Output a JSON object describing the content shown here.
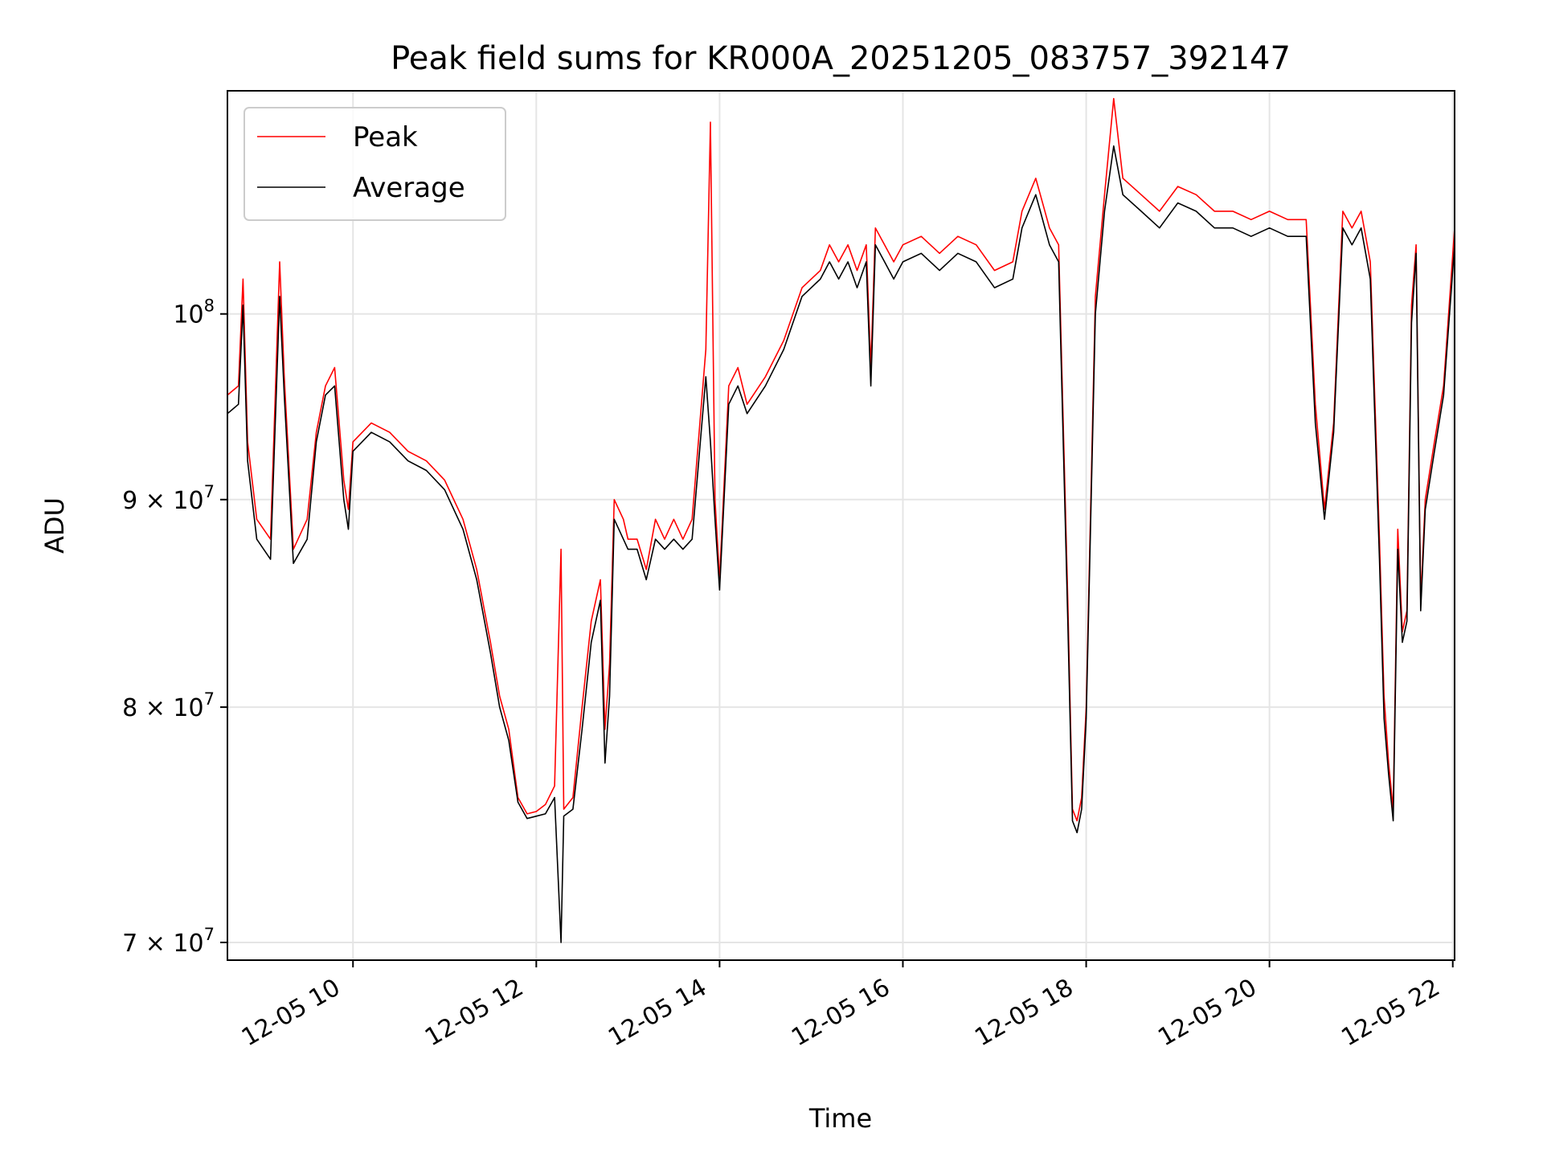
{
  "chart_data": {
    "type": "line",
    "title": "Peak field sums for KR000A_20251205_083757_392147",
    "xlabel": "Time",
    "ylabel": "ADU",
    "y_scale": "log",
    "xlim": [
      8.63,
      22.02
    ],
    "ylim": [
      69300000,
      113500000
    ],
    "grid": true,
    "legend_position": "top-left",
    "x_ticks": [
      {
        "value": 10,
        "label": "12-05 10"
      },
      {
        "value": 12,
        "label": "12-05 12"
      },
      {
        "value": 14,
        "label": "12-05 14"
      },
      {
        "value": 16,
        "label": "12-05 16"
      },
      {
        "value": 18,
        "label": "12-05 18"
      },
      {
        "value": 20,
        "label": "12-05 20"
      },
      {
        "value": 22,
        "label": "12-05 22"
      }
    ],
    "y_ticks": [
      {
        "value": 70000000,
        "base": "7",
        "exp": "7",
        "times": true
      },
      {
        "value": 80000000,
        "base": "8",
        "exp": "7",
        "times": true
      },
      {
        "value": 90000000,
        "base": "9",
        "exp": "7",
        "times": true
      },
      {
        "value": 100000000,
        "base": "10",
        "exp": "8",
        "times": false
      }
    ],
    "series": [
      {
        "name": "Peak",
        "color": "#ff0000",
        "x": [
          8.63,
          8.75,
          8.8,
          8.85,
          8.95,
          9.1,
          9.2,
          9.25,
          9.35,
          9.5,
          9.6,
          9.7,
          9.8,
          9.9,
          9.95,
          10.0,
          10.2,
          10.4,
          10.6,
          10.8,
          11.0,
          11.2,
          11.35,
          11.5,
          11.6,
          11.7,
          11.8,
          11.9,
          12.0,
          12.1,
          12.2,
          12.27,
          12.3,
          12.4,
          12.5,
          12.6,
          12.7,
          12.75,
          12.8,
          12.85,
          12.95,
          13.0,
          13.1,
          13.2,
          13.3,
          13.4,
          13.5,
          13.6,
          13.7,
          13.85,
          13.9,
          13.95,
          14.0,
          14.1,
          14.2,
          14.3,
          14.5,
          14.7,
          14.9,
          15.1,
          15.2,
          15.3,
          15.4,
          15.5,
          15.6,
          15.65,
          15.7,
          15.8,
          15.9,
          16.0,
          16.2,
          16.4,
          16.6,
          16.8,
          17.0,
          17.2,
          17.3,
          17.45,
          17.5,
          17.6,
          17.7,
          17.8,
          17.85,
          17.9,
          17.95,
          18.0,
          18.1,
          18.2,
          18.3,
          18.4,
          18.6,
          18.8,
          19.0,
          19.2,
          19.4,
          19.6,
          19.8,
          20.0,
          20.2,
          20.4,
          20.5,
          20.6,
          20.7,
          20.8,
          20.9,
          21.0,
          21.1,
          21.2,
          21.25,
          21.3,
          21.35,
          21.4,
          21.45,
          21.5,
          21.55,
          21.6,
          21.65,
          21.7,
          21.8,
          21.9,
          22.02
        ],
        "values": [
          95500000,
          96000000,
          102000000,
          93000000,
          89000000,
          88000000,
          103000000,
          96500000,
          87500000,
          89000000,
          93500000,
          96000000,
          97000000,
          91000000,
          89500000,
          93000000,
          94000000,
          93500000,
          92500000,
          92000000,
          91000000,
          89000000,
          86500000,
          83000000,
          80500000,
          79000000,
          76000000,
          75300000,
          75400000,
          75700000,
          76500000,
          87500000,
          75500000,
          76000000,
          80000000,
          84000000,
          86000000,
          79000000,
          82000000,
          90000000,
          89000000,
          88000000,
          88000000,
          86500000,
          89000000,
          88000000,
          89000000,
          88000000,
          89000000,
          98000000,
          111500000,
          90000000,
          86000000,
          96000000,
          97000000,
          95000000,
          96500000,
          98500000,
          101500000,
          102500000,
          104000000,
          103000000,
          104000000,
          102500000,
          104000000,
          97000000,
          105000000,
          104000000,
          103000000,
          104000000,
          104500000,
          103500000,
          104500000,
          104000000,
          102500000,
          103000000,
          106000000,
          108000000,
          107000000,
          105000000,
          104000000,
          85000000,
          75500000,
          75000000,
          76000000,
          80000000,
          101000000,
          107000000,
          113000000,
          108000000,
          107000000,
          106000000,
          107500000,
          107000000,
          106000000,
          106000000,
          105500000,
          106000000,
          105500000,
          105500000,
          95000000,
          89500000,
          94000000,
          106000000,
          105000000,
          106000000,
          103000000,
          88000000,
          80500000,
          77500000,
          75500000,
          88500000,
          83500000,
          84500000,
          100500000,
          104000000,
          85000000,
          90000000,
          93000000,
          96000000,
          105000000
        ]
      },
      {
        "name": "Average",
        "color": "#000000",
        "x": [
          8.63,
          8.75,
          8.8,
          8.85,
          8.95,
          9.1,
          9.2,
          9.25,
          9.35,
          9.5,
          9.6,
          9.7,
          9.8,
          9.9,
          9.95,
          10.0,
          10.2,
          10.4,
          10.6,
          10.8,
          11.0,
          11.2,
          11.35,
          11.5,
          11.6,
          11.7,
          11.8,
          11.9,
          12.0,
          12.1,
          12.2,
          12.27,
          12.3,
          12.4,
          12.5,
          12.6,
          12.7,
          12.75,
          12.8,
          12.85,
          12.95,
          13.0,
          13.1,
          13.2,
          13.3,
          13.4,
          13.5,
          13.6,
          13.7,
          13.85,
          13.9,
          13.95,
          14.0,
          14.1,
          14.2,
          14.3,
          14.5,
          14.7,
          14.9,
          15.1,
          15.2,
          15.3,
          15.4,
          15.5,
          15.6,
          15.65,
          15.7,
          15.8,
          15.9,
          16.0,
          16.2,
          16.4,
          16.6,
          16.8,
          17.0,
          17.2,
          17.3,
          17.45,
          17.5,
          17.6,
          17.7,
          17.8,
          17.85,
          17.9,
          17.95,
          18.0,
          18.1,
          18.2,
          18.3,
          18.4,
          18.6,
          18.8,
          19.0,
          19.2,
          19.4,
          19.6,
          19.8,
          20.0,
          20.2,
          20.4,
          20.5,
          20.6,
          20.7,
          20.8,
          20.9,
          21.0,
          21.1,
          21.2,
          21.25,
          21.3,
          21.35,
          21.4,
          21.45,
          21.5,
          21.55,
          21.6,
          21.65,
          21.7,
          21.8,
          21.9,
          22.02
        ],
        "values": [
          94500000,
          95000000,
          100500000,
          92000000,
          88000000,
          87000000,
          101000000,
          95500000,
          86800000,
          88000000,
          93000000,
          95500000,
          96000000,
          90000000,
          88500000,
          92500000,
          93500000,
          93000000,
          92000000,
          91500000,
          90500000,
          88500000,
          86000000,
          82500000,
          80000000,
          78500000,
          75800000,
          75100000,
          75200000,
          75300000,
          76000000,
          70000000,
          75200000,
          75500000,
          79000000,
          83000000,
          85000000,
          77500000,
          80500000,
          89000000,
          88000000,
          87500000,
          87500000,
          86000000,
          88000000,
          87500000,
          88000000,
          87500000,
          88000000,
          96500000,
          93000000,
          89000000,
          85500000,
          95000000,
          96000000,
          94500000,
          96000000,
          98000000,
          101000000,
          102000000,
          103000000,
          102000000,
          103000000,
          101500000,
          103000000,
          96000000,
          104000000,
          103000000,
          102000000,
          103000000,
          103500000,
          102500000,
          103500000,
          103000000,
          101500000,
          102000000,
          105000000,
          107000000,
          106000000,
          104000000,
          103000000,
          84000000,
          75000000,
          74500000,
          75500000,
          79500000,
          100000000,
          106000000,
          110000000,
          107000000,
          106000000,
          105000000,
          106500000,
          106000000,
          105000000,
          105000000,
          104500000,
          105000000,
          104500000,
          104500000,
          94000000,
          89000000,
          93500000,
          105000000,
          104000000,
          105000000,
          102000000,
          87000000,
          79500000,
          77000000,
          75000000,
          87500000,
          83000000,
          84000000,
          99500000,
          103500000,
          84500000,
          89500000,
          92500000,
          95500000,
          104000000
        ]
      }
    ]
  }
}
